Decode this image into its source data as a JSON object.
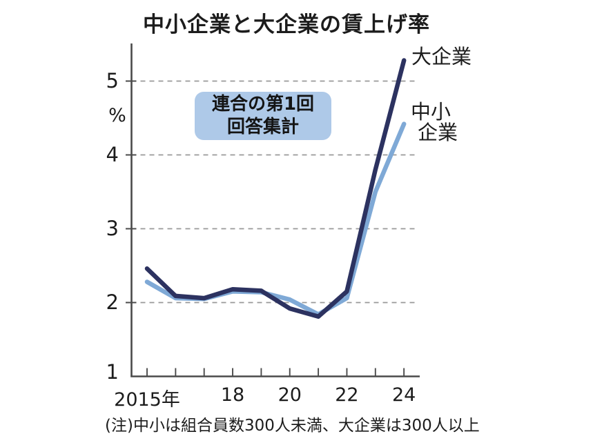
{
  "title": "中小企業と大企業の賃上げ率",
  "unit_label": "%",
  "annotation": {
    "line1": "連合の第1回",
    "line2": "回答集計"
  },
  "legend": {
    "large": "大企業",
    "sme_line1": "中小",
    "sme_line2": "企業"
  },
  "note": "(注)中小は組合員数300人未満、大企業は300人以上",
  "colors": {
    "large_line": "#2c3260",
    "sme_line": "#7fa9d6",
    "annotation_bg": "#aec9e8",
    "grid": "#999999",
    "axis": "#4a4a4a",
    "text": "#1c1c1c"
  },
  "chart_data": {
    "type": "line",
    "title": "中小企業と大企業の賃上げ率",
    "ylabel": "%",
    "x": [
      2015,
      2016,
      2017,
      2018,
      2019,
      2020,
      2021,
      2022,
      2023,
      2024
    ],
    "x_tick_labels": [
      "2015年",
      "",
      "",
      "18",
      "",
      "20",
      "",
      "22",
      "",
      "24"
    ],
    "y_ticks": [
      1,
      2,
      3,
      4,
      5
    ],
    "ylim": [
      1,
      5.5
    ],
    "grid": "dashed horizontal at 2,3,4,5",
    "legend_position": "labels at right ends of lines",
    "series": [
      {
        "name": "大企業",
        "color": "#2c3260",
        "values": [
          2.46,
          2.09,
          2.06,
          2.18,
          2.16,
          1.92,
          1.81,
          2.15,
          3.8,
          5.28
        ]
      },
      {
        "name": "中小企業",
        "color": "#7fa9d6",
        "values": [
          2.28,
          2.06,
          2.05,
          2.15,
          2.14,
          2.04,
          1.84,
          2.06,
          3.5,
          4.42
        ]
      }
    ]
  }
}
